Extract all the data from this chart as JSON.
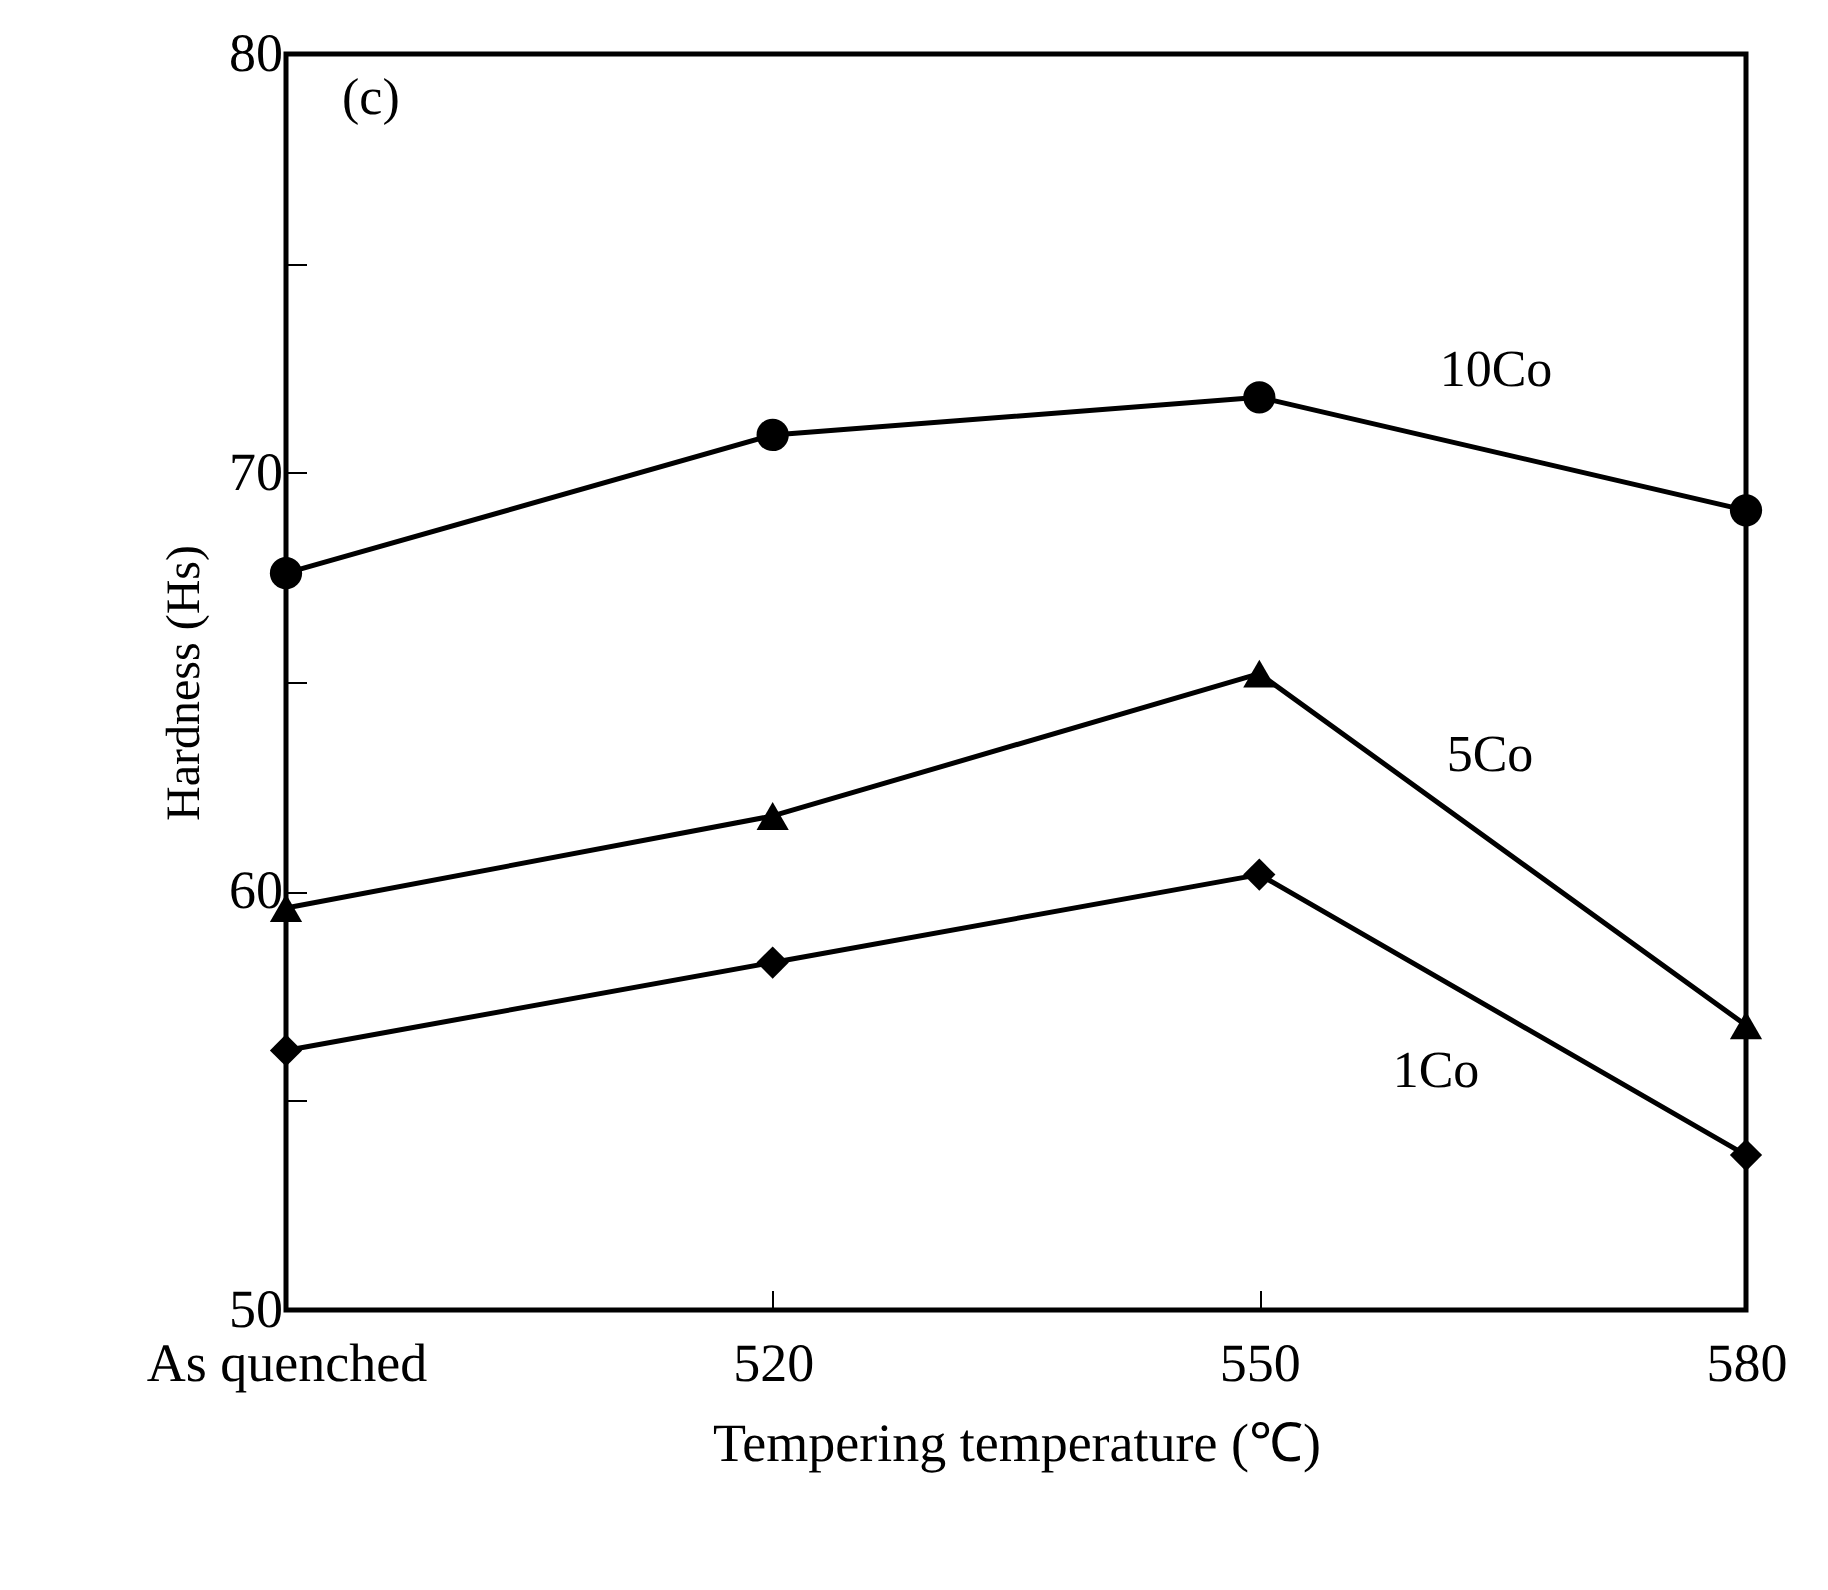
{
  "chart_data": {
    "type": "line",
    "xlabel": "Tempering temperature (℃)",
    "ylabel": "Hardness (Hs)",
    "annotations": [
      "(c)"
    ],
    "categories": [
      "As quenched",
      "520",
      "550",
      "580"
    ],
    "series": [
      {
        "name": "10Co",
        "color": "#000000",
        "marker": "circle",
        "values": [
          67.6,
          70.9,
          71.8,
          69.1
        ]
      },
      {
        "name": "5Co",
        "color": "#000000",
        "marker": "triangle",
        "values": [
          59.6,
          61.8,
          65.2,
          56.8
        ]
      },
      {
        "name": "1Co",
        "color": "#000000",
        "marker": "diamond",
        "values": [
          56.2,
          58.3,
          60.4,
          53.7
        ]
      }
    ],
    "ylim": [
      50,
      80
    ],
    "yticks": [
      50,
      {
        "value": 55,
        "label": null
      },
      60,
      {
        "value": 65,
        "label": null
      },
      70,
      {
        "value": 75,
        "label": null
      },
      80
    ],
    "grid": false,
    "legend": false,
    "line_style": "solid"
  }
}
